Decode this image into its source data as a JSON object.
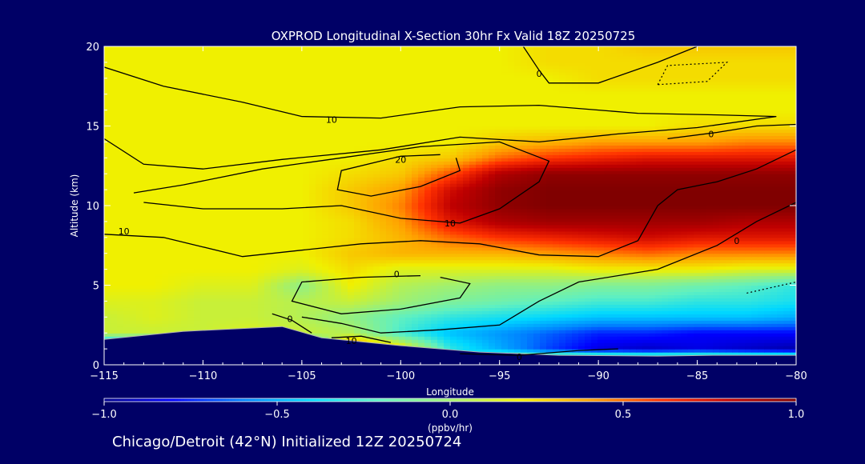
{
  "footer": "Chicago/Detroit (42°N) Initialized 12Z 20250724",
  "chart_data": {
    "type": "heatmap",
    "title": "OXPROD Longitudinal X-Section 30hr  Fx Valid 18Z 20250725",
    "xlabel": "Longitude",
    "ylabel": "Altitude (km)",
    "xlim": [
      -115,
      -80
    ],
    "ylim": [
      0,
      20
    ],
    "xticks": [
      "-115",
      "-110",
      "-105",
      "-100",
      "-95",
      "-90",
      "-85",
      "-80"
    ],
    "yticks": [
      "0",
      "5",
      "10",
      "15",
      "20"
    ],
    "x": [
      -115,
      -112.5,
      -110,
      -107.5,
      -105,
      -102.5,
      -100,
      -97.5,
      -95,
      -92.5,
      -90,
      -87.5,
      -85,
      -82.5,
      -80
    ],
    "y": [
      0,
      1,
      2,
      3,
      4,
      5,
      6,
      7,
      8,
      9,
      10,
      11,
      12,
      13,
      14,
      15,
      16,
      17,
      18,
      19,
      20
    ],
    "z": [
      [
        -1,
        -1,
        -1,
        -1,
        -1,
        -1,
        -1,
        -1,
        0.55,
        0.7,
        0.85,
        0.9,
        0.85,
        0.85,
        0.85
      ],
      [
        -1,
        -1,
        -1,
        -1,
        -1,
        0.6,
        0.3,
        -0.3,
        -0.5,
        -0.7,
        -0.85,
        -0.9,
        -0.85,
        -0.9,
        -0.95
      ],
      [
        0.1,
        0.1,
        0.1,
        0.15,
        0.1,
        0.05,
        -0.25,
        -0.45,
        -0.55,
        -0.65,
        -0.75,
        -0.75,
        -0.8,
        -0.8,
        -0.8
      ],
      [
        0.1,
        0.15,
        0.1,
        0.1,
        0.05,
        -0.05,
        -0.2,
        -0.3,
        -0.35,
        -0.4,
        -0.45,
        -0.45,
        -0.45,
        -0.45,
        -0.5
      ],
      [
        0.15,
        0.15,
        0.1,
        0.1,
        0.05,
        0.1,
        0.0,
        -0.1,
        -0.15,
        -0.2,
        -0.25,
        -0.25,
        -0.3,
        -0.3,
        -0.35
      ],
      [
        0.2,
        0.2,
        0.15,
        0.15,
        -0.05,
        0.2,
        0.05,
        0.0,
        -0.05,
        -0.05,
        -0.1,
        -0.1,
        -0.15,
        -0.2,
        -0.3
      ],
      [
        0.2,
        0.2,
        0.2,
        0.2,
        0.15,
        0.25,
        0.15,
        0.15,
        0.15,
        0.15,
        0.2,
        0.2,
        0.2,
        0.15,
        0.15
      ],
      [
        0.2,
        0.2,
        0.2,
        0.2,
        0.2,
        0.3,
        0.35,
        0.35,
        0.35,
        0.4,
        0.45,
        0.5,
        0.45,
        0.45,
        0.45
      ],
      [
        0.2,
        0.2,
        0.2,
        0.2,
        0.2,
        0.25,
        0.35,
        0.5,
        0.6,
        0.65,
        0.7,
        0.75,
        0.7,
        0.7,
        0.7
      ],
      [
        0.2,
        0.2,
        0.2,
        0.2,
        0.2,
        0.25,
        0.4,
        0.7,
        0.85,
        0.9,
        0.9,
        0.9,
        0.9,
        0.85,
        0.85
      ],
      [
        0.2,
        0.2,
        0.2,
        0.2,
        0.2,
        0.3,
        0.45,
        0.8,
        0.95,
        1.0,
        1.0,
        1.0,
        1.0,
        1.0,
        1.0
      ],
      [
        0.2,
        0.2,
        0.2,
        0.2,
        0.2,
        0.3,
        0.4,
        0.75,
        0.95,
        1.0,
        1.0,
        1.0,
        1.0,
        1.0,
        1.0
      ],
      [
        0.2,
        0.2,
        0.2,
        0.2,
        0.2,
        0.25,
        0.3,
        0.55,
        0.85,
        0.95,
        0.95,
        0.95,
        0.95,
        0.95,
        0.95
      ],
      [
        0.2,
        0.2,
        0.2,
        0.2,
        0.2,
        0.2,
        0.25,
        0.3,
        0.5,
        0.6,
        0.65,
        0.7,
        0.7,
        0.7,
        0.7
      ],
      [
        0.2,
        0.2,
        0.2,
        0.2,
        0.2,
        0.2,
        0.2,
        0.2,
        0.3,
        0.35,
        0.4,
        0.4,
        0.4,
        0.45,
        0.45
      ],
      [
        0.2,
        0.2,
        0.2,
        0.2,
        0.2,
        0.2,
        0.2,
        0.2,
        0.2,
        0.2,
        0.2,
        0.2,
        0.25,
        0.25,
        0.25
      ],
      [
        0.2,
        0.2,
        0.2,
        0.2,
        0.2,
        0.2,
        0.2,
        0.2,
        0.2,
        0.2,
        0.2,
        0.2,
        0.2,
        0.2,
        0.2
      ],
      [
        0.2,
        0.2,
        0.2,
        0.2,
        0.2,
        0.2,
        0.2,
        0.2,
        0.2,
        0.2,
        0.2,
        0.2,
        0.2,
        0.2,
        0.2
      ],
      [
        0.2,
        0.2,
        0.2,
        0.2,
        0.2,
        0.2,
        0.2,
        0.2,
        0.2,
        0.2,
        0.25,
        0.25,
        0.25,
        0.25,
        0.25
      ],
      [
        0.2,
        0.2,
        0.2,
        0.2,
        0.2,
        0.2,
        0.2,
        0.2,
        0.2,
        0.25,
        0.25,
        0.25,
        0.25,
        0.25,
        0.25
      ],
      [
        0.2,
        0.2,
        0.2,
        0.2,
        0.2,
        0.2,
        0.2,
        0.2,
        0.2,
        0.25,
        0.25,
        0.3,
        0.3,
        0.3,
        0.3
      ]
    ],
    "terrain": [
      {
        "lon": -115,
        "alt": 1.6
      },
      {
        "lon": -111,
        "alt": 2.1
      },
      {
        "lon": -106,
        "alt": 2.4
      },
      {
        "lon": -104,
        "alt": 1.7
      },
      {
        "lon": -100,
        "alt": 1.2
      },
      {
        "lon": -96,
        "alt": 0.8
      },
      {
        "lon": -92,
        "alt": 0.6
      },
      {
        "lon": -87,
        "alt": 0.55
      },
      {
        "lon": -84,
        "alt": 0.6
      },
      {
        "lon": -80,
        "alt": 0.6
      }
    ],
    "contours": [
      {
        "label": "0",
        "label_at": {
          "lon": -93,
          "alt": 18.3
        },
        "points": [
          [
            -93.8,
            20
          ],
          [
            -93,
            18.5
          ],
          [
            -92.5,
            17.7
          ],
          [
            -90,
            17.7
          ],
          [
            -87,
            19
          ],
          [
            -85,
            20
          ]
        ]
      },
      {
        "label": "10",
        "label_at": {
          "lon": -103.5,
          "alt": 15.4
        },
        "points": [
          [
            -115,
            18.7
          ],
          [
            -112,
            17.5
          ],
          [
            -108,
            16.5
          ],
          [
            -105,
            15.6
          ],
          [
            -101,
            15.5
          ],
          [
            -97,
            16.2
          ],
          [
            -93,
            16.3
          ],
          [
            -88,
            15.8
          ],
          [
            -84,
            15.7
          ],
          [
            -81,
            15.6
          ],
          [
            -85,
            14.9
          ],
          [
            -89,
            14.5
          ],
          [
            -93,
            14
          ],
          [
            -97,
            14.3
          ],
          [
            -101,
            13.5
          ],
          [
            -106,
            12.9
          ],
          [
            -110,
            12.3
          ],
          [
            -113,
            12.6
          ],
          [
            -115,
            14.2
          ]
        ]
      },
      {
        "label": "0",
        "label_at": {
          "lon": -84.3,
          "alt": 14.5
        },
        "points": [
          [
            -86.5,
            14.2
          ],
          [
            -84,
            14.6
          ],
          [
            -82,
            15
          ],
          [
            -80,
            15.1
          ]
        ]
      },
      {
        "label": "20",
        "label_at": {
          "lon": -100,
          "alt": 12.9
        },
        "points": [
          [
            -98,
            13.2
          ],
          [
            -100,
            13.1
          ],
          [
            -103,
            12.2
          ],
          [
            -103.2,
            11
          ],
          [
            -101.5,
            10.6
          ],
          [
            -99,
            11.2
          ],
          [
            -97,
            12.2
          ],
          [
            -97.2,
            13
          ]
        ]
      },
      {
        "label": "10",
        "label_at": {
          "lon": -97.5,
          "alt": 8.9
        },
        "points": [
          [
            -113,
            10.2
          ],
          [
            -110,
            9.8
          ],
          [
            -106,
            9.8
          ],
          [
            -103,
            10
          ],
          [
            -100,
            9.2
          ],
          [
            -97,
            8.9
          ],
          [
            -95,
            9.8
          ],
          [
            -93,
            11.5
          ],
          [
            -92.5,
            12.8
          ],
          [
            -95,
            14
          ],
          [
            -99,
            13.7
          ],
          [
            -103,
            13
          ],
          [
            -107,
            12.3
          ],
          [
            -111,
            11.3
          ],
          [
            -113.5,
            10.8
          ]
        ]
      },
      {
        "label": "10",
        "label_at": {
          "lon": -114,
          "alt": 8.4
        },
        "points": [
          [
            -115,
            8.2
          ],
          [
            -112,
            8
          ],
          [
            -110,
            7.4
          ],
          [
            -108,
            6.8
          ],
          [
            -105,
            7.2
          ],
          [
            -102,
            7.6
          ],
          [
            -99,
            7.8
          ],
          [
            -96,
            7.6
          ],
          [
            -93,
            6.9
          ],
          [
            -90,
            6.8
          ],
          [
            -88,
            7.8
          ],
          [
            -87,
            10
          ],
          [
            -86,
            11
          ],
          [
            -84,
            11.5
          ],
          [
            -82,
            12.3
          ],
          [
            -80,
            13.5
          ]
        ]
      },
      {
        "label": "0",
        "label_at": {
          "lon": -83,
          "alt": 7.8
        },
        "points": [
          [
            -80,
            10.2
          ],
          [
            -82,
            9
          ],
          [
            -84,
            7.5
          ],
          [
            -87,
            6
          ],
          [
            -91,
            5.2
          ],
          [
            -93,
            4
          ],
          [
            -95,
            2.5
          ],
          [
            -98,
            2.2
          ],
          [
            -101,
            2
          ],
          [
            -103,
            2.6
          ],
          [
            -105,
            3
          ]
        ]
      },
      {
        "label": "0",
        "label_at": {
          "lon": -100.2,
          "alt": 5.7
        },
        "points": [
          [
            -99,
            5.6
          ],
          [
            -102,
            5.5
          ],
          [
            -105,
            5.2
          ],
          [
            -105.5,
            4
          ],
          [
            -103,
            3.2
          ],
          [
            -100,
            3.5
          ],
          [
            -97,
            4.2
          ],
          [
            -96.5,
            5.1
          ],
          [
            -98,
            5.5
          ]
        ]
      },
      {
        "label": "0",
        "label_at": {
          "lon": -105.6,
          "alt": 2.9
        },
        "points": [
          [
            -106.5,
            3.2
          ],
          [
            -105.5,
            2.8
          ],
          [
            -104.5,
            2
          ]
        ]
      },
      {
        "label": "10",
        "label_at": {
          "lon": -102.5,
          "alt": 1.5
        },
        "points": [
          [
            -103.5,
            1.7
          ],
          [
            -102,
            1.8
          ],
          [
            -100.5,
            1.4
          ]
        ]
      },
      {
        "label": "0",
        "label_at": {
          "lon": -94,
          "alt": 0.5
        },
        "points": [
          [
            -97,
            0.7
          ],
          [
            -94,
            0.6
          ],
          [
            -91,
            0.9
          ],
          [
            -89,
            1.0
          ]
        ]
      }
    ],
    "dotted_contours": [
      {
        "points": [
          [
            -87,
            17.6
          ],
          [
            -86.5,
            18.8
          ],
          [
            -85,
            18.9
          ],
          [
            -83.5,
            19
          ],
          [
            -84.5,
            17.8
          ],
          [
            -87,
            17.6
          ]
        ]
      },
      {
        "points": [
          [
            -82.5,
            4.5
          ],
          [
            -80,
            5.2
          ]
        ]
      }
    ],
    "colorbar": {
      "min": -1.0,
      "max": 1.0,
      "ticks": [
        "-1.0",
        "-0.5",
        "0.0",
        "0.5",
        "1.0"
      ],
      "tick_values": [
        -1.0,
        -0.5,
        0.0,
        0.5,
        1.0
      ],
      "units": "(ppbv/hr)",
      "colormap": [
        "#00008c",
        "#0000ff",
        "#0080ff",
        "#00d8ff",
        "#60f0c0",
        "#a0f070",
        "#f0f000",
        "#ffa000",
        "#ff3000",
        "#c00000",
        "#800000"
      ]
    },
    "grid": false
  }
}
